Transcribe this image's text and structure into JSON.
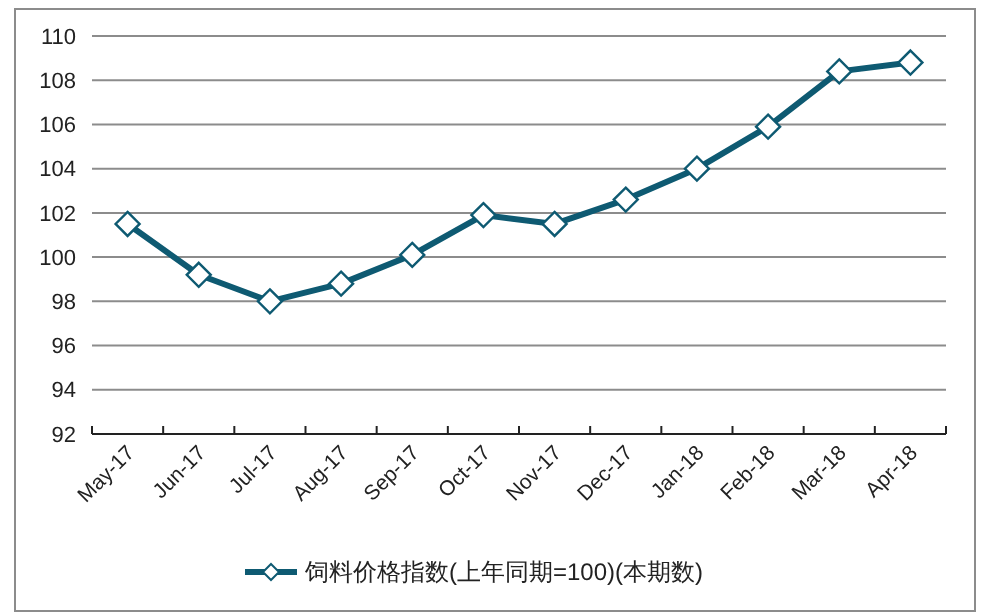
{
  "chart_data": {
    "type": "line",
    "categories": [
      "May-17",
      "Jun-17",
      "Jul-17",
      "Aug-17",
      "Sep-17",
      "Oct-17",
      "Nov-17",
      "Dec-17",
      "Jan-18",
      "Feb-18",
      "Mar-18",
      "Apr-18"
    ],
    "series": [
      {
        "name": "饲料价格指数(上年同期=100)(本期数)",
        "color": "#0e5a72",
        "values": [
          101.5,
          99.2,
          98.0,
          98.8,
          100.1,
          101.9,
          101.5,
          102.6,
          104.0,
          105.9,
          108.4,
          108.8
        ]
      }
    ],
    "ylim": [
      92,
      110
    ],
    "yticks": [
      92,
      94,
      96,
      98,
      100,
      102,
      104,
      106,
      108,
      110
    ],
    "grid": "y",
    "legend": "bottom",
    "marker": "diamond",
    "line_style": "solid"
  }
}
